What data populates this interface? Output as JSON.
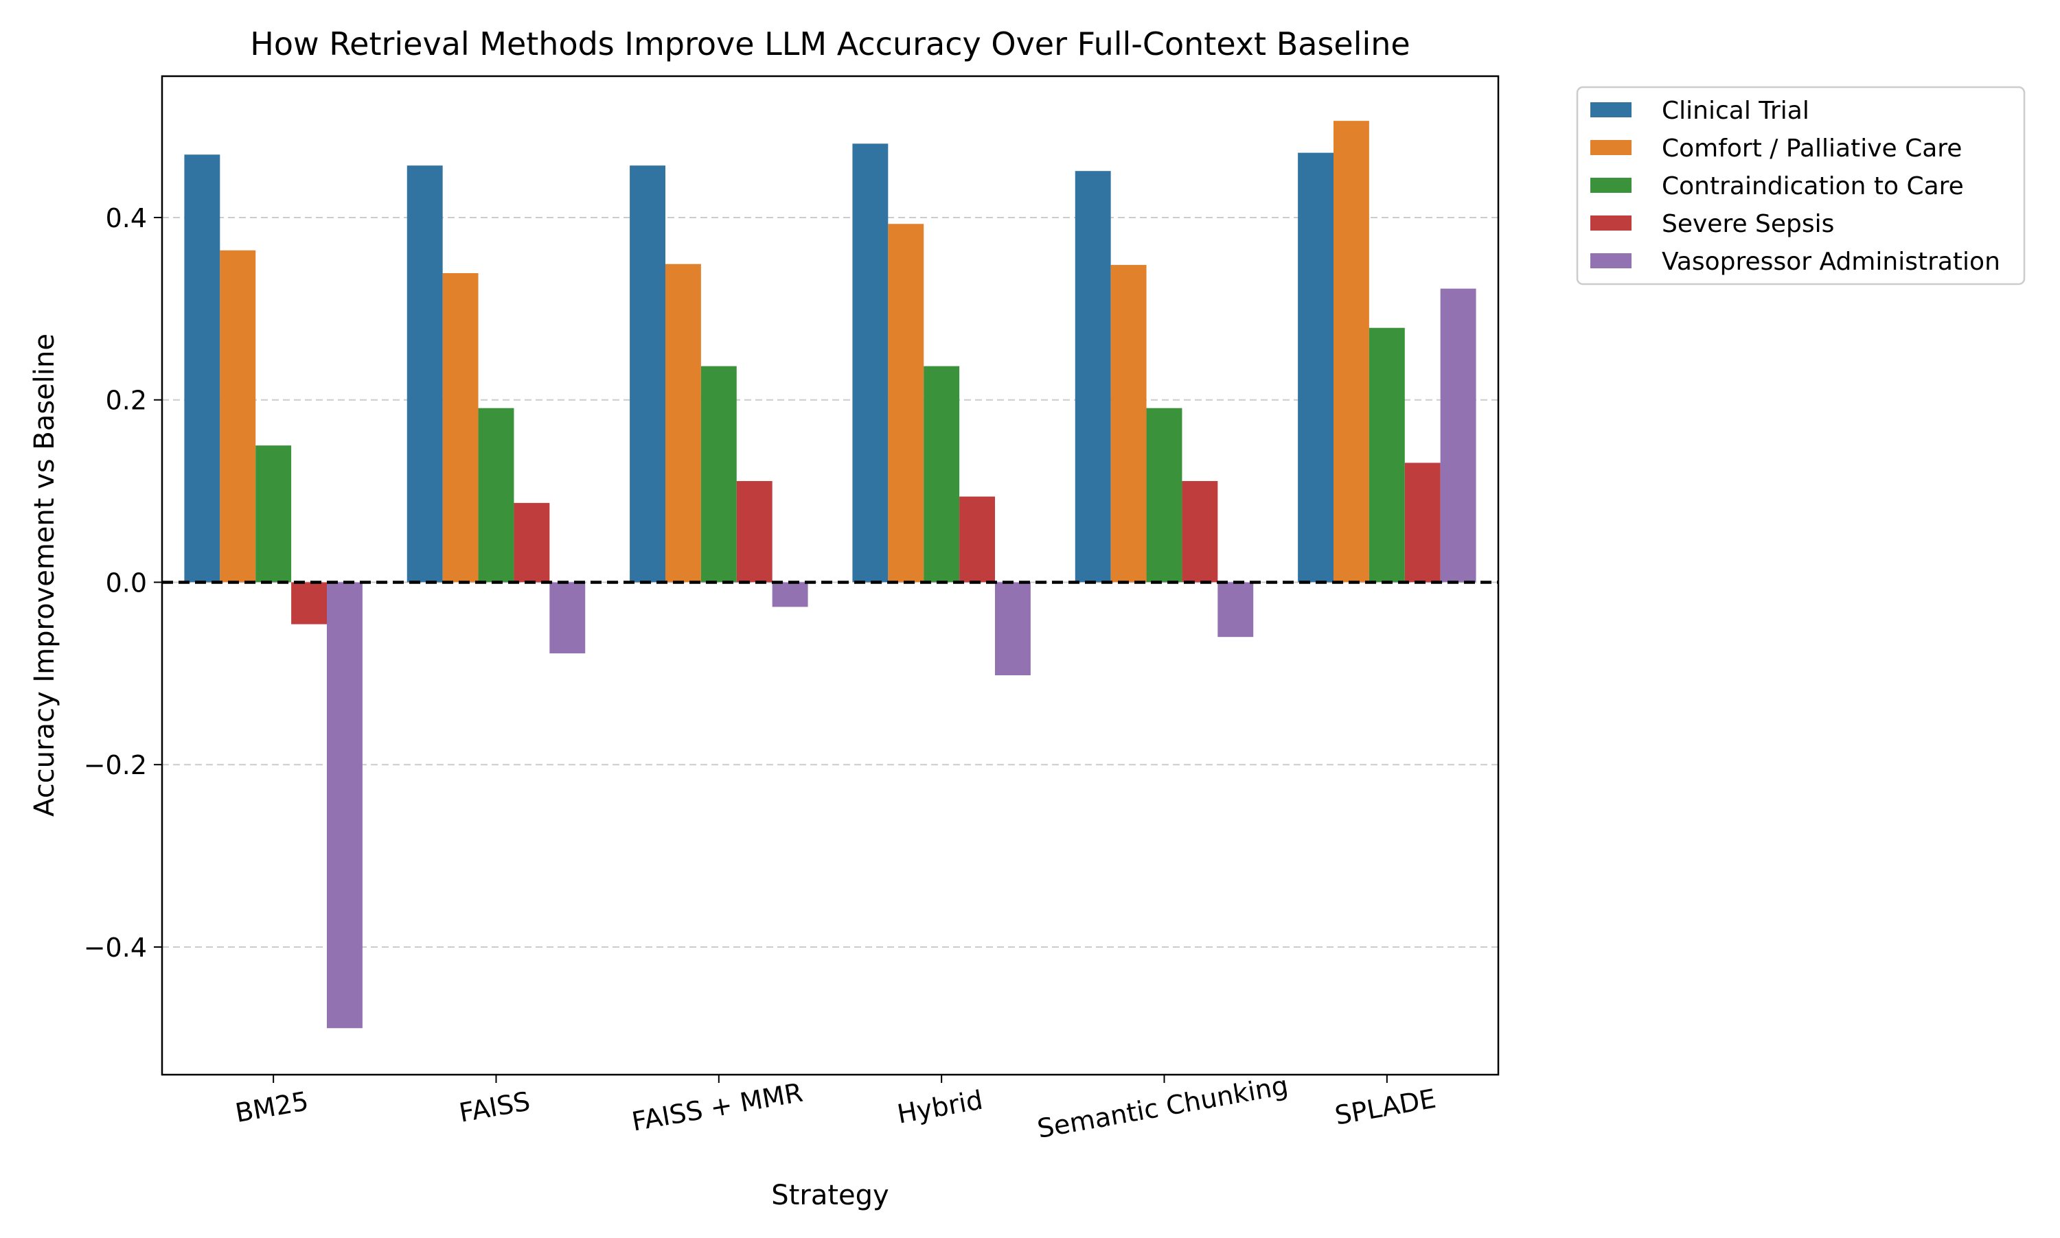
{
  "chart_data": {
    "type": "bar",
    "title": "How Retrieval Methods Improve LLM Accuracy Over Full-Context Baseline",
    "xlabel": "Strategy",
    "ylabel": "Accuracy Improvement vs Baseline",
    "ylim": [
      -0.54,
      0.555
    ],
    "yticks": [
      -0.4,
      -0.2,
      0.0,
      0.2,
      0.4
    ],
    "ytick_labels": [
      "−0.4",
      "−0.2",
      "0.0",
      "0.2",
      "0.4"
    ],
    "grid": true,
    "baseline": 0.0,
    "legend_position": "outside-top-right",
    "categories": [
      "BM25",
      "FAISS",
      "FAISS + MMR",
      "Hybrid",
      "Semantic Chunking",
      "SPLADE"
    ],
    "series": [
      {
        "name": "Clinical Trial",
        "color": "#3274a1",
        "values": [
          0.469,
          0.457,
          0.457,
          0.481,
          0.451,
          0.471
        ]
      },
      {
        "name": "Comfort / Palliative Care",
        "color": "#e1812c",
        "values": [
          0.364,
          0.339,
          0.349,
          0.393,
          0.348,
          0.506
        ]
      },
      {
        "name": "Contraindication to Care",
        "color": "#3a923a",
        "values": [
          0.15,
          0.191,
          0.237,
          0.237,
          0.191,
          0.279
        ]
      },
      {
        "name": "Severe Sepsis",
        "color": "#c03d3e",
        "values": [
          -0.046,
          0.087,
          0.111,
          0.094,
          0.111,
          0.131
        ]
      },
      {
        "name": "Vasopressor Administration",
        "color": "#9372b2",
        "values": [
          -0.489,
          -0.078,
          -0.027,
          -0.102,
          -0.06,
          0.322
        ]
      }
    ]
  }
}
